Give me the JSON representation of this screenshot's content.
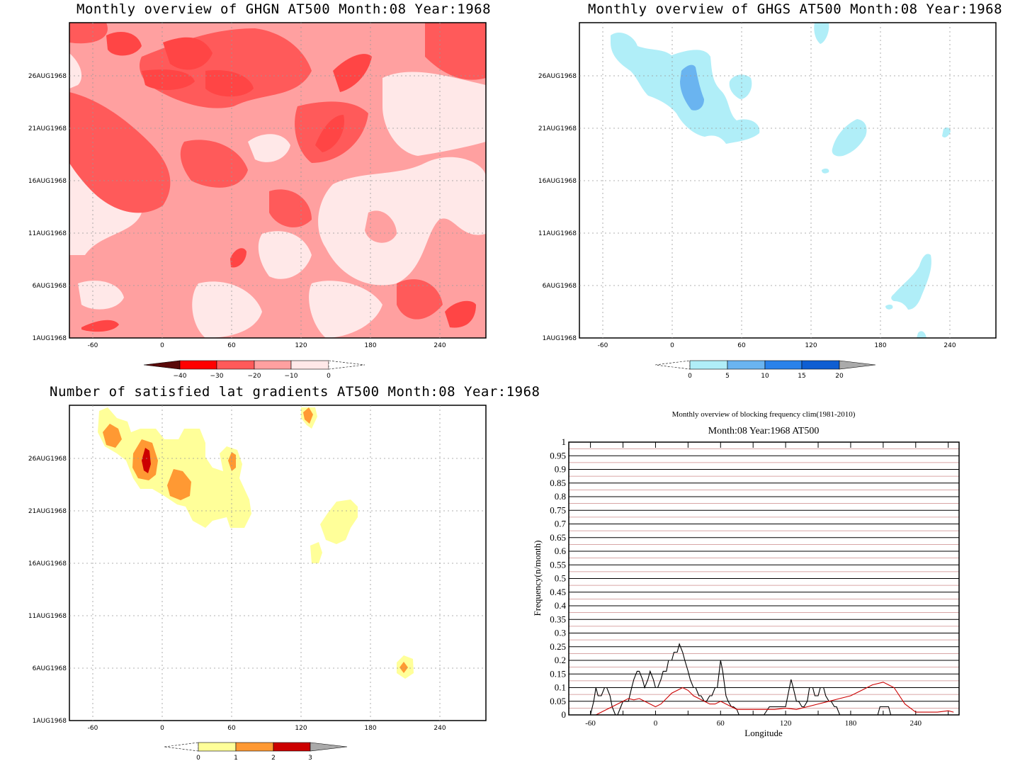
{
  "panels": [
    {
      "id": "ghgn",
      "title": "Monthly overview of GHGN AT500 Month:08 Year:1968",
      "xticks": [
        "-60",
        "0",
        "60",
        "120",
        "180",
        "240"
      ],
      "yticks": [
        "1AUG1968",
        "6AUG1968",
        "11AUG1968",
        "16AUG1968",
        "21AUG1968",
        "26AUG1968"
      ],
      "colorbar": {
        "labels": [
          "−40",
          "−30",
          "−20",
          "−10",
          "0"
        ],
        "colors": [
          "#5a0a0a",
          "#ff0000",
          "#ff5a5a",
          "#ffa0a0",
          "#ffe8e8"
        ]
      }
    },
    {
      "id": "ghgs",
      "title": "Monthly overview of GHGS AT500 Month:08 Year:1968",
      "xticks": [
        "-60",
        "0",
        "60",
        "120",
        "180",
        "240"
      ],
      "yticks": [
        "1AUG1968",
        "6AUG1968",
        "11AUG1968",
        "16AUG1968",
        "21AUG1968",
        "26AUG1968"
      ],
      "colorbar": {
        "labels": [
          "0",
          "5",
          "10",
          "15",
          "20"
        ],
        "colors": [
          "#b0eef8",
          "#6ab4f0",
          "#2a82ea",
          "#0f5ed2",
          "#aaaaaa"
        ]
      }
    },
    {
      "id": "lat",
      "title": "Number of satisfied lat gradients AT500 Month:08 Year:1968",
      "xticks": [
        "-60",
        "0",
        "60",
        "120",
        "180",
        "240"
      ],
      "yticks": [
        "1AUG1968",
        "6AUG1968",
        "11AUG1968",
        "16AUG1968",
        "21AUG1968",
        "26AUG1968"
      ],
      "colorbar": {
        "labels": [
          "0",
          "1",
          "2",
          "3"
        ],
        "colors": [
          "#ffff99",
          "#ff9933",
          "#cc0000",
          "#aaaaaa"
        ]
      }
    }
  ],
  "freq": {
    "title1": "Monthly overview of blocking frequency clim(1981-2010)",
    "title2": "Month:08 Year:1968  AT500",
    "ylabel": "Frequency(n/month)",
    "xlabel": "Longitude",
    "yticks": [
      "0",
      "0.05",
      "0.1",
      "0.15",
      "0.2",
      "0.25",
      "0.3",
      "0.35",
      "0.4",
      "0.45",
      "0.5",
      "0.55",
      "0.6",
      "0.65",
      "0.7",
      "0.75",
      "0.8",
      "0.85",
      "0.9",
      "0.95",
      "1"
    ],
    "xticks": [
      "-60",
      "0",
      "60",
      "120",
      "180",
      "240"
    ]
  },
  "chart_data": [
    {
      "type": "heatmap",
      "title": "Monthly overview of GHGN AT500 Month:08 Year:1968",
      "x_range": [
        -80,
        280
      ],
      "y_range": [
        "1AUG1968",
        "31AUG1968"
      ],
      "levels": [
        -40,
        -30,
        -20,
        -10,
        0
      ],
      "colors": [
        "#5a0a0a",
        "#ff0000",
        "#ff5a5a",
        "#ffa0a0",
        "#ffe8e8"
      ]
    },
    {
      "type": "heatmap",
      "title": "Monthly overview of GHGS AT500 Month:08 Year:1968",
      "x_range": [
        -80,
        280
      ],
      "y_range": [
        "1AUG1968",
        "31AUG1968"
      ],
      "levels": [
        0,
        5,
        10,
        15,
        20
      ],
      "colors": [
        "#b0eef8",
        "#6ab4f0",
        "#2a82ea",
        "#0f5ed2"
      ]
    },
    {
      "type": "heatmap",
      "title": "Number of satisfied lat gradients AT500 Month:08 Year:1968",
      "x_range": [
        -80,
        280
      ],
      "y_range": [
        "1AUG1968",
        "31AUG1968"
      ],
      "levels": [
        0,
        1,
        2,
        3
      ],
      "colors": [
        "#ffff99",
        "#ff9933",
        "#cc0000"
      ]
    },
    {
      "type": "line",
      "title": "Monthly overview of blocking frequency clim(1981-2010)",
      "subtitle": "Month:08 Year:1968  AT500",
      "xlabel": "Longitude",
      "ylabel": "Frequency(n/month)",
      "xlim": [
        -80,
        280
      ],
      "ylim": [
        0,
        1
      ],
      "series": [
        {
          "color": "#000000",
          "x": [
            -60,
            -57,
            -55,
            -53,
            -50,
            -47,
            -45,
            -42,
            -40,
            -37,
            -35,
            -32,
            -30,
            -25,
            -22,
            -20,
            -17,
            -15,
            -12,
            -10,
            -7,
            -5,
            -2,
            0,
            2,
            5,
            7,
            10,
            12,
            15,
            17,
            20,
            22,
            25,
            27,
            30,
            32,
            35,
            37,
            40,
            42,
            45,
            47,
            50,
            52,
            55,
            57,
            60,
            62,
            65,
            67,
            70,
            72,
            75,
            77,
            80,
            100,
            105,
            110,
            115,
            120,
            125,
            127,
            130,
            132,
            135,
            137,
            140,
            142,
            145,
            147,
            150,
            152,
            155,
            157,
            160,
            162,
            165,
            167,
            170,
            180,
            185,
            190,
            195,
            200,
            205,
            207,
            210,
            212,
            215,
            217,
            220,
            225,
            230
          ],
          "y": [
            0,
            0.05,
            0.1,
            0.07,
            0.07,
            0.1,
            0.1,
            0.07,
            0.03,
            0,
            0,
            0.03,
            0.05,
            0.05,
            0.1,
            0.13,
            0.16,
            0.16,
            0.13,
            0.1,
            0.13,
            0.16,
            0.13,
            0.1,
            0.1,
            0.13,
            0.16,
            0.16,
            0.2,
            0.2,
            0.23,
            0.23,
            0.26,
            0.23,
            0.2,
            0.16,
            0.13,
            0.1,
            0.1,
            0.07,
            0.07,
            0.05,
            0.05,
            0.07,
            0.07,
            0.1,
            0.1,
            0.2,
            0.16,
            0.07,
            0.05,
            0.03,
            0.03,
            0.02,
            0,
            0,
            0,
            0.03,
            0.03,
            0.03,
            0.03,
            0.13,
            0.1,
            0.05,
            0.05,
            0.03,
            0.03,
            0.05,
            0.1,
            0.1,
            0.07,
            0.07,
            0.1,
            0.1,
            0.07,
            0.05,
            0.05,
            0.03,
            0.03,
            0,
            0,
            0,
            0,
            0,
            0,
            0,
            0.03,
            0.03,
            0.03,
            0.03,
            0,
            0,
            0,
            0
          ]
        },
        {
          "color": "#cc0000",
          "x": [
            -60,
            -55,
            -50,
            -45,
            -40,
            -35,
            -30,
            -25,
            -20,
            -15,
            -10,
            -5,
            0,
            5,
            10,
            15,
            20,
            25,
            30,
            35,
            40,
            45,
            50,
            55,
            60,
            65,
            70,
            75,
            80,
            90,
            100,
            110,
            120,
            130,
            140,
            150,
            160,
            170,
            180,
            190,
            200,
            210,
            215,
            220,
            225,
            230,
            240,
            250,
            260,
            270,
            275
          ],
          "y": [
            0,
            0,
            0.01,
            0.02,
            0.03,
            0.04,
            0.05,
            0.06,
            0.055,
            0.06,
            0.05,
            0.04,
            0.03,
            0.04,
            0.06,
            0.08,
            0.09,
            0.1,
            0.09,
            0.07,
            0.06,
            0.05,
            0.04,
            0.04,
            0.05,
            0.04,
            0.03,
            0.02,
            0.02,
            0.02,
            0.02,
            0.02,
            0.025,
            0.02,
            0.03,
            0.04,
            0.05,
            0.06,
            0.07,
            0.09,
            0.11,
            0.12,
            0.11,
            0.1,
            0.07,
            0.04,
            0.01,
            0.01,
            0.01,
            0.015,
            0.01
          ]
        }
      ]
    }
  ]
}
